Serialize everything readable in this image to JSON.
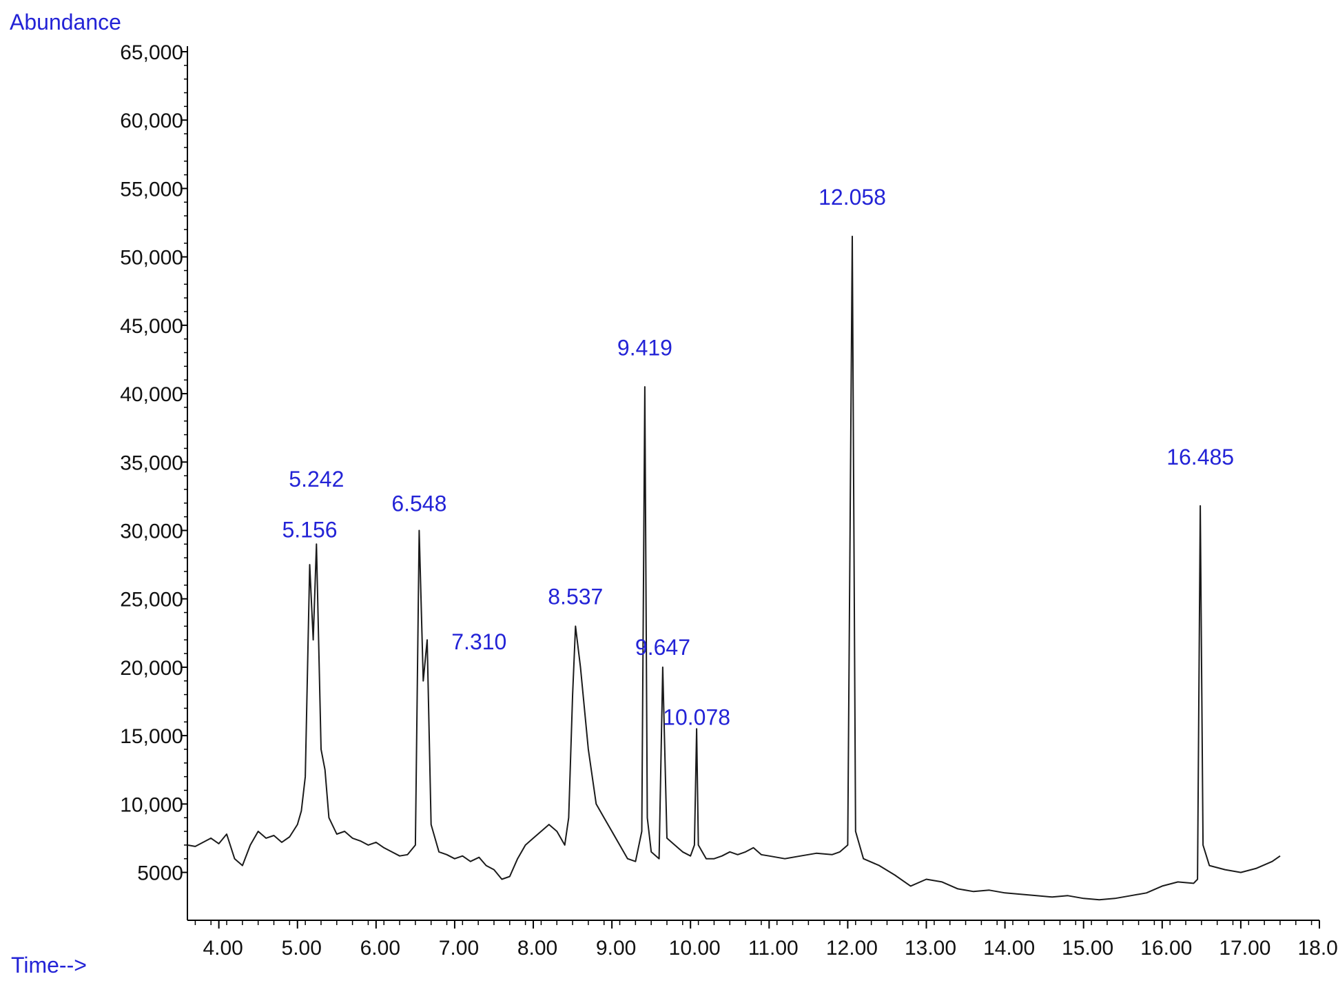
{
  "chart_data": {
    "type": "line",
    "ylabel": "Abundance",
    "xlabel": "Time-->",
    "xlim": [
      3.6,
      18.0
    ],
    "ylim": [
      1500,
      65000
    ],
    "x_ticks": [
      4.0,
      5.0,
      6.0,
      7.0,
      8.0,
      9.0,
      10.0,
      11.0,
      12.0,
      13.0,
      14.0,
      15.0,
      16.0,
      17.0,
      18.0
    ],
    "x_tick_labels": [
      "4.00",
      "5.00",
      "6.00",
      "7.00",
      "8.00",
      "9.00",
      "10.00",
      "11.00",
      "12.00",
      "13.00",
      "14.00",
      "15.00",
      "16.00",
      "17.00",
      "18.00"
    ],
    "y_ticks": [
      5000,
      10000,
      15000,
      20000,
      25000,
      30000,
      35000,
      40000,
      45000,
      50000,
      55000,
      60000,
      65000
    ],
    "y_tick_labels": [
      "5000",
      "10,000",
      "15,000",
      "20,000",
      "25,000",
      "30,000",
      "35,000",
      "40,000",
      "45,000",
      "50,000",
      "55,000",
      "60,000",
      "65,000"
    ],
    "grid": false,
    "colors": {
      "trace": "#1a1a1a",
      "axis": "#000000",
      "label": "#2323d6",
      "tick_text": "#111111"
    },
    "series": [
      {
        "x": [
          3.6,
          3.7,
          3.8,
          3.9,
          4.0,
          4.1,
          4.2,
          4.3,
          4.4,
          4.5,
          4.6,
          4.7,
          4.8,
          4.9,
          5.0,
          5.05,
          5.1,
          5.156,
          5.2,
          5.242,
          5.3,
          5.35,
          5.4,
          5.5,
          5.6,
          5.7,
          5.8,
          5.9,
          6.0,
          6.1,
          6.2,
          6.3,
          6.4,
          6.5,
          6.548,
          6.6,
          6.65,
          6.7,
          6.8,
          6.9,
          7.0,
          7.1,
          7.2,
          7.31,
          7.4,
          7.5,
          7.6,
          7.7,
          7.8,
          7.9,
          8.0,
          8.1,
          8.2,
          8.3,
          8.4,
          8.45,
          8.5,
          8.537,
          8.6,
          8.7,
          8.8,
          8.9,
          9.0,
          9.1,
          9.2,
          9.3,
          9.38,
          9.419,
          9.45,
          9.5,
          9.6,
          9.647,
          9.7,
          9.8,
          9.9,
          10.0,
          10.05,
          10.078,
          10.1,
          10.2,
          10.3,
          10.4,
          10.5,
          10.6,
          10.7,
          10.8,
          10.9,
          11.0,
          11.2,
          11.4,
          11.6,
          11.8,
          11.9,
          12.0,
          12.058,
          12.1,
          12.2,
          12.4,
          12.6,
          12.8,
          13.0,
          13.2,
          13.4,
          13.6,
          13.8,
          14.0,
          14.2,
          14.4,
          14.6,
          14.8,
          15.0,
          15.2,
          15.4,
          15.6,
          15.8,
          16.0,
          16.2,
          16.4,
          16.45,
          16.485,
          16.52,
          16.6,
          16.8,
          17.0,
          17.2,
          17.4,
          17.5
        ],
        "y": [
          7000,
          6900,
          7200,
          7500,
          7100,
          7800,
          6000,
          5500,
          7000,
          8000,
          7500,
          7700,
          7200,
          7600,
          8500,
          9500,
          12000,
          27500,
          22000,
          29000,
          14000,
          12500,
          9000,
          7800,
          8000,
          7500,
          7300,
          7000,
          7200,
          6800,
          6500,
          6200,
          6300,
          7000,
          30000,
          19000,
          22000,
          8500,
          6500,
          6300,
          6000,
          6200,
          5800,
          6100,
          5500,
          5200,
          4500,
          4700,
          6000,
          7000,
          7500,
          8000,
          8500,
          8000,
          7000,
          9000,
          18000,
          23000,
          20000,
          14000,
          10000,
          9000,
          8000,
          7000,
          6000,
          5800,
          8000,
          40500,
          9000,
          6500,
          6000,
          20000,
          7500,
          7000,
          6500,
          6200,
          7000,
          15500,
          7000,
          6000,
          6000,
          6200,
          6500,
          6300,
          6500,
          6800,
          6300,
          6200,
          6000,
          6200,
          6400,
          6300,
          6500,
          7000,
          51500,
          8000,
          6000,
          5500,
          4800,
          4000,
          4500,
          4300,
          3800,
          3600,
          3700,
          3500,
          3400,
          3300,
          3200,
          3300,
          3100,
          3000,
          3100,
          3300,
          3500,
          4000,
          4300,
          4200,
          4500,
          31800,
          7000,
          5500,
          5200,
          5000,
          5300,
          5800,
          6200
        ]
      }
    ],
    "annotations": [
      {
        "text": "5.156",
        "x": 5.156,
        "y": 29500
      },
      {
        "text": "5.242",
        "x": 5.242,
        "y": 33200
      },
      {
        "text": "6.548",
        "x": 6.548,
        "y": 31400
      },
      {
        "text": "7.310",
        "x": 7.31,
        "y": 21300
      },
      {
        "text": "8.537",
        "x": 8.537,
        "y": 24600
      },
      {
        "text": "9.419",
        "x": 9.419,
        "y": 42800
      },
      {
        "text": "9.647",
        "x": 9.647,
        "y": 20900
      },
      {
        "text": "10.078",
        "x": 10.078,
        "y": 15800
      },
      {
        "text": "12.058",
        "x": 12.058,
        "y": 53800
      },
      {
        "text": "16.485",
        "x": 16.485,
        "y": 34800
      }
    ]
  }
}
